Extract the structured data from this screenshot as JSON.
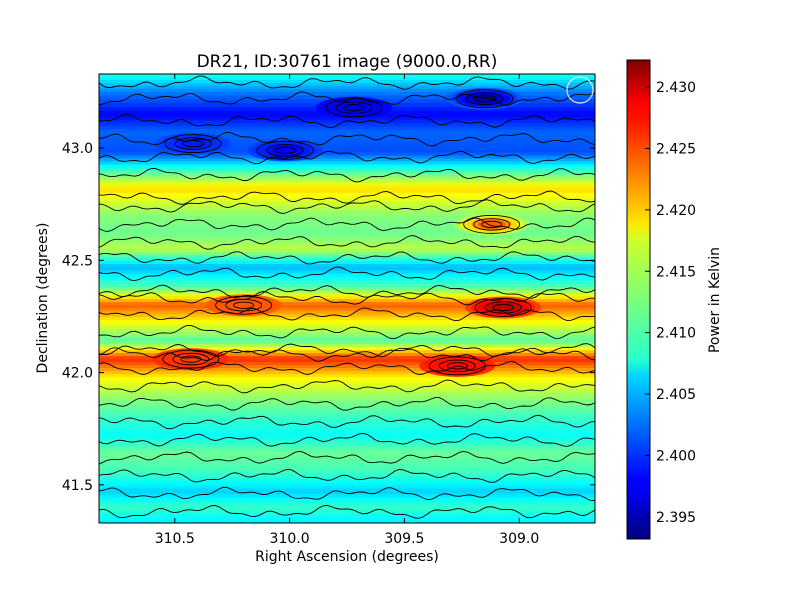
{
  "chart_data": {
    "type": "heatmap",
    "title": "DR21, ID:30761 image (9000.0,RR)",
    "xlabel": "Right Ascension (degrees)",
    "ylabel": "Declination (degrees)",
    "xlim": [
      310.83,
      308.67
    ],
    "ylim": [
      41.33,
      43.33
    ],
    "x_ticks": [
      310.5,
      310.0,
      309.5,
      309.0
    ],
    "x_tick_labels": [
      "310.5",
      "310.0",
      "309.5",
      "309.0"
    ],
    "y_ticks": [
      41.5,
      42.0,
      42.5,
      43.0
    ],
    "y_tick_labels": [
      "41.5",
      "42.0",
      "42.5",
      "43.0"
    ],
    "colorbar": {
      "label": "Power in Kelvin",
      "range": [
        2.3932,
        2.4322
      ],
      "ticks": [
        2.395,
        2.4,
        2.405,
        2.41,
        2.415,
        2.42,
        2.425,
        2.43
      ],
      "tick_labels": [
        "2.395",
        "2.400",
        "2.405",
        "2.410",
        "2.415",
        "2.420",
        "2.425",
        "2.430"
      ],
      "colormap": "jet"
    },
    "contours": "black contour lines overlaid",
    "beam_marker": "circle, top-right corner",
    "dec_profile": [
      {
        "dec": 43.33,
        "value": 2.409
      },
      {
        "dec": 43.25,
        "value": 2.403
      },
      {
        "dec": 43.15,
        "value": 2.398
      },
      {
        "dec": 43.07,
        "value": 2.402
      },
      {
        "dec": 42.98,
        "value": 2.401
      },
      {
        "dec": 42.9,
        "value": 2.41
      },
      {
        "dec": 42.82,
        "value": 2.419
      },
      {
        "dec": 42.7,
        "value": 2.413
      },
      {
        "dec": 42.62,
        "value": 2.412
      },
      {
        "dec": 42.55,
        "value": 2.415
      },
      {
        "dec": 42.47,
        "value": 2.405
      },
      {
        "dec": 42.38,
        "value": 2.411
      },
      {
        "dec": 42.3,
        "value": 2.424
      },
      {
        "dec": 42.22,
        "value": 2.417
      },
      {
        "dec": 42.14,
        "value": 2.411
      },
      {
        "dec": 42.06,
        "value": 2.426
      },
      {
        "dec": 41.98,
        "value": 2.418
      },
      {
        "dec": 41.88,
        "value": 2.413
      },
      {
        "dec": 41.8,
        "value": 2.41
      },
      {
        "dec": 41.72,
        "value": 2.408
      },
      {
        "dec": 41.64,
        "value": 2.412
      },
      {
        "dec": 41.55,
        "value": 2.41
      },
      {
        "dec": 41.47,
        "value": 2.406
      },
      {
        "dec": 41.4,
        "value": 2.41
      },
      {
        "dec": 41.33,
        "value": 2.407
      }
    ],
    "hot_spots": [
      {
        "ra": 309.07,
        "dec": 42.29,
        "value": 2.43
      },
      {
        "ra": 309.27,
        "dec": 42.03,
        "value": 2.427
      },
      {
        "ra": 310.43,
        "dec": 42.06,
        "value": 2.425
      },
      {
        "ra": 309.12,
        "dec": 42.66,
        "value": 2.424
      },
      {
        "ra": 310.2,
        "dec": 42.3,
        "value": 2.424
      }
    ],
    "cold_spots": [
      {
        "ra": 309.15,
        "dec": 43.22,
        "value": 2.395
      },
      {
        "ra": 309.72,
        "dec": 43.18,
        "value": 2.397
      },
      {
        "ra": 310.02,
        "dec": 42.99,
        "value": 2.398
      },
      {
        "ra": 310.42,
        "dec": 43.02,
        "value": 2.399
      }
    ]
  }
}
